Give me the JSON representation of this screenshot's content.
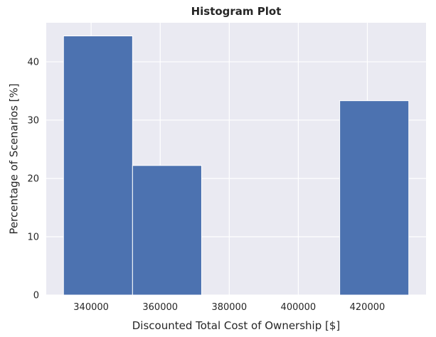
{
  "chart_data": {
    "type": "bar",
    "title": "Histogram Plot",
    "xlabel": "Discounted Total Cost of Ownership [$]",
    "ylabel": "Percentage of Scenarios [%]",
    "bins": [
      {
        "x0": 332000,
        "x1": 352000,
        "value": 44.44
      },
      {
        "x0": 352000,
        "x1": 372000,
        "value": 22.22
      },
      {
        "x0": 372000,
        "x1": 392000,
        "value": 0
      },
      {
        "x0": 392000,
        "x1": 412000,
        "value": 0
      },
      {
        "x0": 412000,
        "x1": 432000,
        "value": 33.33
      }
    ],
    "xticks": [
      "340000",
      "360000",
      "380000",
      "400000",
      "420000"
    ],
    "yticks": [
      "0",
      "10",
      "20",
      "30",
      "40"
    ],
    "xlim": [
      327000,
      437000
    ],
    "ylim": [
      0,
      46.7
    ],
    "grid": true,
    "background_color": "#eaeaf2",
    "bar_color": "#4c72b0",
    "grid_color": "#ffffff"
  }
}
